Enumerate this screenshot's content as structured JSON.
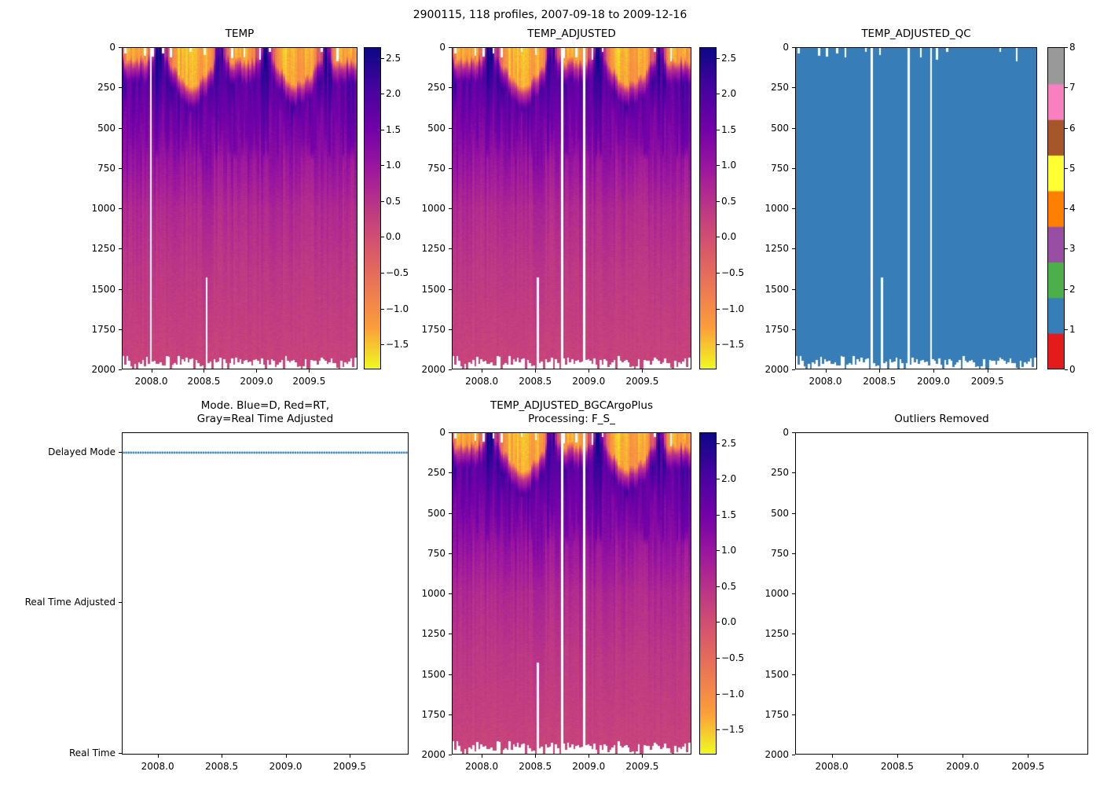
{
  "figure": {
    "title": "2900115, 118 profiles, 2007-09-18 to 2009-12-16"
  },
  "colors": {
    "background": "#ffffff",
    "axis": "#000000",
    "mode_marker": "#1f77b4",
    "qc_fill": "#377eb8",
    "plasma_stops": [
      [
        0.0,
        "#0d0887"
      ],
      [
        0.125,
        "#46039f"
      ],
      [
        0.25,
        "#7201a8"
      ],
      [
        0.375,
        "#9c179e"
      ],
      [
        0.5,
        "#bd3786"
      ],
      [
        0.625,
        "#d8576b"
      ],
      [
        0.75,
        "#ed7953"
      ],
      [
        0.875,
        "#fb9f3a"
      ],
      [
        1.0,
        "#f0f921"
      ]
    ]
  },
  "chart_data": [
    {
      "id": "temp",
      "type": "heatmap",
      "title": "TEMP",
      "x_range": [
        2007.72,
        2009.96
      ],
      "y_range": [
        0,
        2000
      ],
      "y_inverted": true,
      "x_ticks": {
        "values": [
          2008.0,
          2008.5,
          2009.0,
          2009.5
        ],
        "labels": [
          "2008.0",
          "2008.5",
          "2009.0",
          "2009.5"
        ]
      },
      "y_ticks": {
        "values": [
          0,
          250,
          500,
          750,
          1000,
          1250,
          1500,
          1750,
          2000
        ],
        "labels": [
          "0",
          "250",
          "500",
          "750",
          "1000",
          "1250",
          "1500",
          "1750",
          "2000"
        ]
      },
      "colorbar": {
        "colormap": "plasma_r",
        "vmin": -1.85,
        "vmax": 2.65,
        "ticks": {
          "values": [
            2.5,
            2.0,
            1.5,
            1.0,
            0.5,
            0.0,
            -0.5,
            -1.0,
            -1.5
          ],
          "labels": [
            "2.5",
            "2.0",
            "1.5",
            "1.0",
            "0.5",
            "0.0",
            "−0.5",
            "−1.0",
            "−1.5"
          ]
        }
      },
      "n_profiles": 118,
      "value_description": "Temperature section vs depth and time: yellow cold surface cap near −1.7, dark purple/navy thermocline band 1.5–2.5 at ~100–450 m, fading through magenta to salmon ~0.1 at 2000 m",
      "missing_profile_times": [
        2008.0
      ],
      "partial_profile": {
        "time": 2008.52,
        "max_depth": 1430
      },
      "profile_max_depth_range": [
        1922,
        2000
      ]
    },
    {
      "id": "temp_adjusted",
      "type": "heatmap",
      "title": "TEMP_ADJUSTED",
      "x_range": [
        2007.72,
        2009.96
      ],
      "y_range": [
        0,
        2000
      ],
      "y_inverted": true,
      "x_ticks": {
        "values": [
          2008.0,
          2008.5,
          2009.0,
          2009.5
        ],
        "labels": [
          "2008.0",
          "2008.5",
          "2009.0",
          "2009.5"
        ]
      },
      "y_ticks": {
        "values": [
          0,
          250,
          500,
          750,
          1000,
          1250,
          1500,
          1750,
          2000
        ],
        "labels": [
          "0",
          "250",
          "500",
          "750",
          "1000",
          "1250",
          "1500",
          "1750",
          "2000"
        ]
      },
      "colorbar": {
        "colormap": "plasma_r",
        "vmin": -1.85,
        "vmax": 2.65,
        "ticks": {
          "values": [
            2.5,
            2.0,
            1.5,
            1.0,
            0.5,
            0.0,
            -0.5,
            -1.0,
            -1.5
          ],
          "labels": [
            "2.5",
            "2.0",
            "1.5",
            "1.0",
            "0.5",
            "0.0",
            "−0.5",
            "−1.0",
            "−1.5"
          ]
        }
      },
      "n_profiles": 118,
      "value_description": "Same temperature field as TEMP with adjusted values; additional missing profiles appear as white vertical lines",
      "missing_profile_times": [
        2008.75,
        2008.97
      ],
      "partial_profile": {
        "time": 2008.52,
        "max_depth": 1430
      },
      "profile_max_depth_range": [
        1922,
        2000
      ]
    },
    {
      "id": "temp_adjusted_qc",
      "type": "heatmap",
      "title": "TEMP_ADJUSTED_QC",
      "x_range": [
        2007.72,
        2009.96
      ],
      "y_range": [
        0,
        2000
      ],
      "y_inverted": true,
      "x_ticks": {
        "values": [
          2008.0,
          2008.5,
          2009.0,
          2009.5
        ],
        "labels": [
          "2008.0",
          "2008.5",
          "2009.0",
          "2009.5"
        ]
      },
      "y_ticks": {
        "values": [
          0,
          250,
          500,
          750,
          1000,
          1250,
          1500,
          1750,
          2000
        ],
        "labels": [
          "0",
          "250",
          "500",
          "750",
          "1000",
          "1250",
          "1500",
          "1750",
          "2000"
        ]
      },
      "dominant_qc_value": 1,
      "colorbar": {
        "colormap": "Set1-9",
        "vmin": 0,
        "vmax": 8,
        "colors": [
          "#e41a1c",
          "#377eb8",
          "#4daf4a",
          "#984ea3",
          "#ff7f00",
          "#ffff33",
          "#a65628",
          "#f781bf",
          "#999999"
        ],
        "ticks": {
          "values": [
            8,
            7,
            6,
            5,
            4,
            3,
            2,
            1,
            0
          ],
          "labels": [
            "8",
            "7",
            "6",
            "5",
            "4",
            "3",
            "2",
            "1",
            "0"
          ]
        }
      },
      "n_profiles": 118,
      "value_description": "QC flags: nearly all points flag 1 (blue); white vertical lines are missing profiles, white notches at top/bottom are unsampled bins",
      "missing_profile_times": [
        2008.43,
        2008.78,
        2008.98
      ],
      "partial_profile": {
        "time": 2008.52,
        "max_depth": 1430
      },
      "profile_max_depth_range": [
        1922,
        2000
      ]
    },
    {
      "id": "mode",
      "type": "scatter",
      "title_lines": [
        "Mode. Blue=D, Red=RT,",
        "Gray=Real Time Adjusted"
      ],
      "x_range": [
        2007.72,
        2009.96
      ],
      "x_ticks": {
        "values": [
          2008.0,
          2008.5,
          2009.0,
          2009.5
        ],
        "labels": [
          "2008.0",
          "2008.5",
          "2009.0",
          "2009.5"
        ]
      },
      "y_categories": [
        "Delayed Mode",
        "Real Time Adjusted",
        "Real Time"
      ],
      "series": [
        {
          "name": "Delayed Mode",
          "category": "Delayed Mode",
          "marker_color": "#1f77b4",
          "marker": "point",
          "n_points": 118,
          "note": "all 118 profiles are delayed mode, drawn as a dotted blue line at the Delayed Mode level"
        }
      ]
    },
    {
      "id": "temp_adjusted_bgc",
      "type": "heatmap",
      "title_lines": [
        "TEMP_ADJUSTED_BGCArgoPlus",
        "Processing: F_S_"
      ],
      "title": "TEMP_ADJUSTED_BGCArgoPlus Processing: F_S_",
      "x_range": [
        2007.72,
        2009.96
      ],
      "y_range": [
        0,
        2000
      ],
      "y_inverted": true,
      "x_ticks": {
        "values": [
          2008.0,
          2008.5,
          2009.0,
          2009.5
        ],
        "labels": [
          "2008.0",
          "2008.5",
          "2009.0",
          "2009.5"
        ]
      },
      "y_ticks": {
        "values": [
          0,
          250,
          500,
          750,
          1000,
          1250,
          1500,
          1750,
          2000
        ],
        "labels": [
          "0",
          "250",
          "500",
          "750",
          "1000",
          "1250",
          "1500",
          "1750",
          "2000"
        ]
      },
      "colorbar": {
        "colormap": "plasma_r",
        "vmin": -1.85,
        "vmax": 2.65,
        "ticks": {
          "values": [
            2.5,
            2.0,
            1.5,
            1.0,
            0.5,
            0.0,
            -0.5,
            -1.0,
            -1.5
          ],
          "labels": [
            "2.5",
            "2.0",
            "1.5",
            "1.0",
            "0.5",
            "0.0",
            "−0.5",
            "−1.0",
            "−1.5"
          ]
        }
      },
      "n_profiles": 118,
      "value_description": "Identical temperature field to TEMP_ADJUSTED",
      "missing_profile_times": [
        2008.75,
        2008.97
      ],
      "partial_profile": {
        "time": 2008.52,
        "max_depth": 1430
      },
      "profile_max_depth_range": [
        1922,
        2000
      ]
    },
    {
      "id": "outliers",
      "type": "heatmap",
      "title": "Outliers Removed",
      "empty": true,
      "x_range": [
        2007.72,
        2009.96
      ],
      "y_range": [
        0,
        2000
      ],
      "y_inverted": true,
      "x_ticks": {
        "values": [
          2008.0,
          2008.5,
          2009.0,
          2009.5
        ],
        "labels": [
          "2008.0",
          "2008.5",
          "2009.0",
          "2009.5"
        ]
      },
      "y_ticks": {
        "values": [
          0,
          250,
          500,
          750,
          1000,
          1250,
          1500,
          1750,
          2000
        ],
        "labels": [
          "0",
          "250",
          "500",
          "750",
          "1000",
          "1250",
          "1500",
          "1750",
          "2000"
        ]
      }
    }
  ]
}
